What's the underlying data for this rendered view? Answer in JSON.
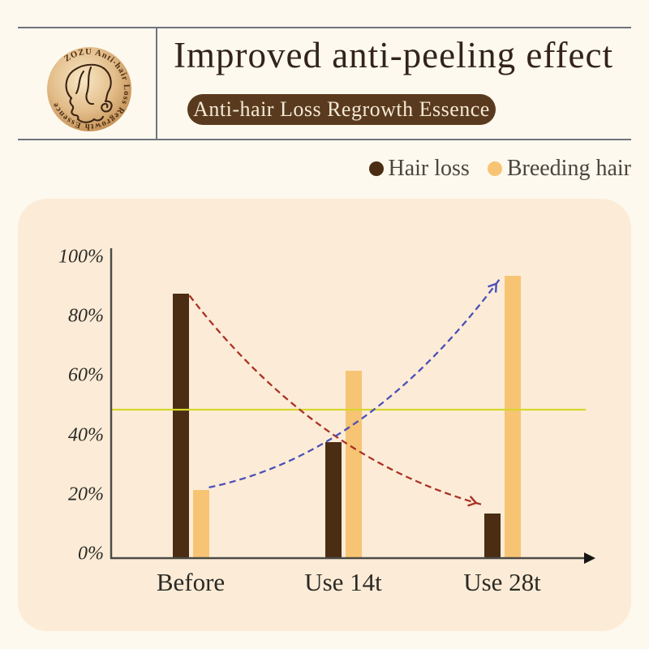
{
  "header": {
    "title": "Improved anti-peeling effect",
    "badge": "Anti-hair Loss Regrowth Essence"
  },
  "logo": {
    "ring_text": "ZOZU Anti-hair Loss Regrowth Essence"
  },
  "legend": {
    "items": [
      {
        "label": "Hair loss",
        "color": "#4a2d13"
      },
      {
        "label": "Breeding hair",
        "color": "#f7c474"
      }
    ]
  },
  "chart_data": {
    "type": "bar",
    "title": "Improved anti-peeling effect",
    "categories": [
      "Before",
      "Use 14t",
      "Use 28t"
    ],
    "series": [
      {
        "name": "Hair loss",
        "color": "#4a2d13",
        "values": [
          89,
          39,
          15
        ]
      },
      {
        "name": "Breeding hair",
        "color": "#f7c474",
        "values": [
          23,
          63,
          95
        ]
      }
    ],
    "xlabel": "",
    "ylabel": "",
    "ylim": [
      0,
      100
    ],
    "yticks": [
      {
        "value": 0,
        "label": "0%"
      },
      {
        "value": 20,
        "label": "20%"
      },
      {
        "value": 40,
        "label": "40%"
      },
      {
        "value": 60,
        "label": "60%"
      },
      {
        "value": 80,
        "label": "80%"
      },
      {
        "value": 100,
        "label": "100%"
      }
    ],
    "grid": false,
    "legend_position": "top-right",
    "threshold_line": {
      "value": 50,
      "color": "#d7d72f"
    },
    "annotations": [
      {
        "type": "trend-arrow",
        "series": "Hair loss",
        "from": "Before",
        "to": "Use 28t",
        "direction": "down",
        "color": "#a93226",
        "style": "dashed"
      },
      {
        "type": "trend-arrow",
        "series": "Breeding hair",
        "from": "Before",
        "to": "Use 28t",
        "direction": "up",
        "color": "#4c50b8",
        "style": "dashed"
      }
    ]
  },
  "colors": {
    "page_bg": "#fdf9ee",
    "panel_bg": "#fcecd7",
    "header_line": "#70737e",
    "title_text": "#33231a",
    "badge_bg": "#5a3a1e",
    "badge_text": "#f3ead6",
    "legend_text": "#4b453e",
    "axis": "#4c4a46",
    "axis_arrow": "#171513",
    "tick_text": "#2b2a25",
    "logo_gold_light": "#f5e2ba",
    "logo_gold_dark": "#bf8a4c",
    "logo_line": "#3a2414"
  }
}
